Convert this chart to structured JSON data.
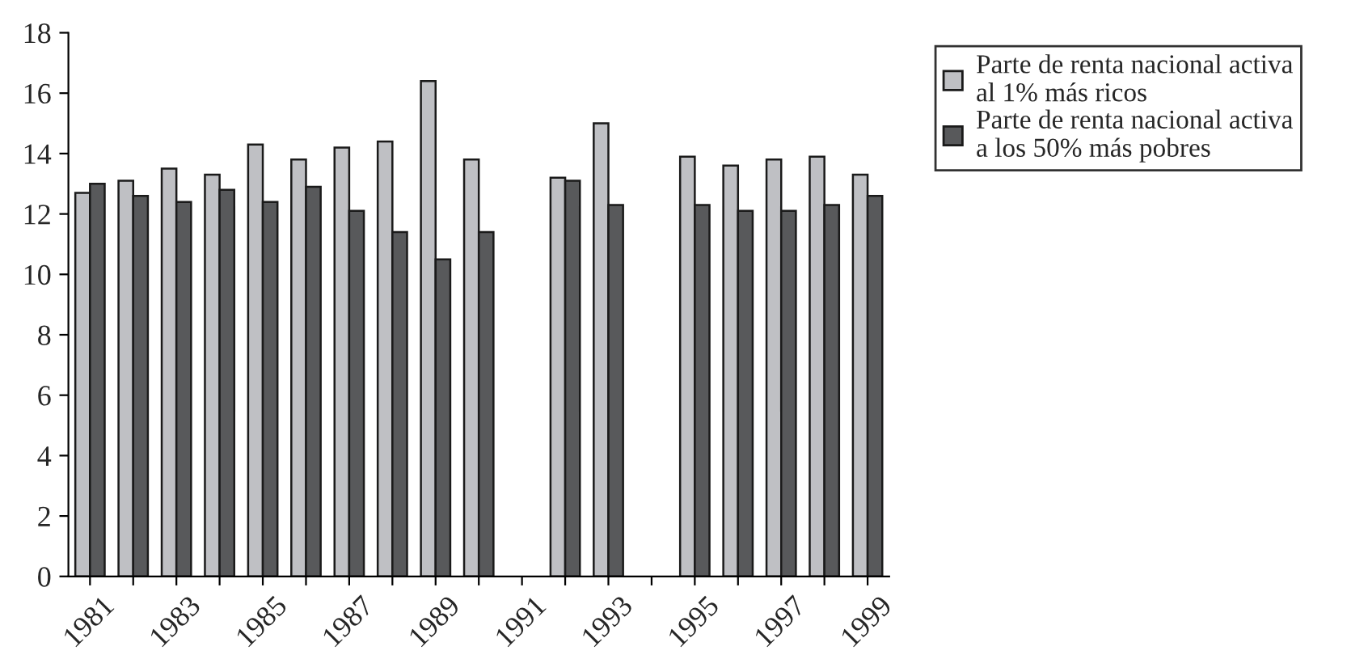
{
  "chart_data": {
    "type": "bar",
    "categories": [
      "1981",
      null,
      "1983",
      null,
      "1985",
      null,
      "1987",
      null,
      "1989",
      null,
      "1991",
      null,
      "1993",
      null,
      "1995",
      null,
      "1997",
      null,
      "1999"
    ],
    "series": [
      {
        "name": "Parte de renta nacional activa\nal 1% más ricos",
        "color": "#bfc0c4",
        "values": [
          12.7,
          13.1,
          13.5,
          13.3,
          14.3,
          13.8,
          14.2,
          14.4,
          16.4,
          13.8,
          null,
          13.2,
          15.0,
          null,
          13.9,
          13.6,
          13.8,
          13.9,
          13.3
        ]
      },
      {
        "name": "Parte de renta nacional activa\na los 50% más pobres",
        "color": "#58595b",
        "values": [
          13.0,
          12.6,
          12.4,
          12.8,
          12.4,
          12.9,
          12.1,
          11.4,
          10.5,
          11.4,
          null,
          13.1,
          12.3,
          null,
          12.3,
          12.1,
          12.1,
          12.3,
          12.6
        ]
      }
    ],
    "ylim": [
      0,
      18
    ],
    "yticks": [
      0,
      2,
      4,
      6,
      8,
      10,
      12,
      14,
      16,
      18
    ],
    "legend": "top right",
    "grid": false
  }
}
